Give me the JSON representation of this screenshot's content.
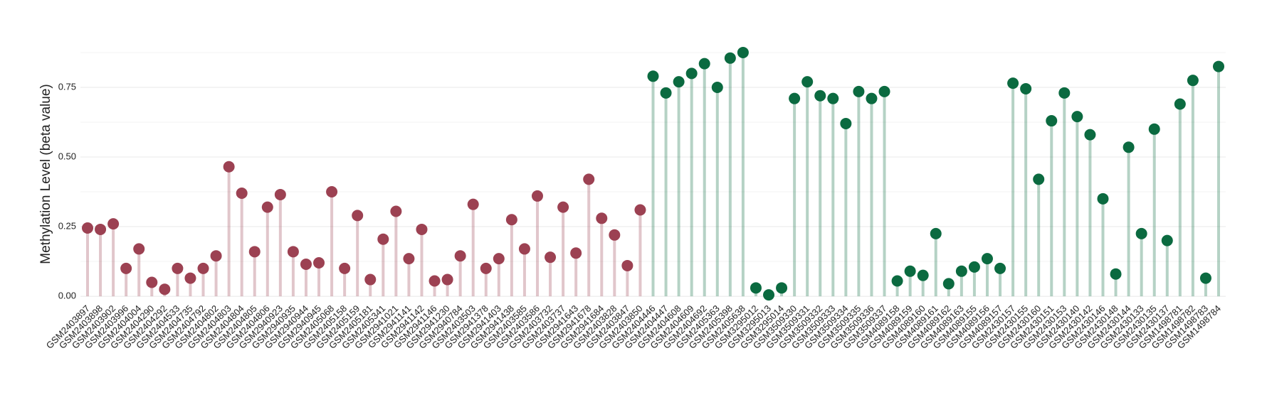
{
  "chart_data": {
    "type": "lollipop",
    "y_axis_label": "Methylation Level (beta value)",
    "categories": [
      "GSM2403897",
      "GSM2403898",
      "GSM2403902",
      "GSM2403996",
      "GSM2404004",
      "GSM2404290",
      "GSM2404292",
      "GSM2404533",
      "GSM2404735",
      "GSM2404792",
      "GSM2404802",
      "GSM2404803",
      "GSM2404804",
      "GSM2404805",
      "GSM2404806",
      "GSM2940923",
      "GSM2940935",
      "GSM2940944",
      "GSM2940945",
      "GSM2405068",
      "GSM2405158",
      "GSM2405159",
      "GSM2405181",
      "GSM2405341",
      "GSM2941021",
      "GSM2941141",
      "GSM2941142",
      "GSM2941146",
      "GSM2941230",
      "GSM2940784",
      "GSM2403503",
      "GSM2941378",
      "GSM2941403",
      "GSM2941438",
      "GSM2403585",
      "GSM2403586",
      "GSM2403732",
      "GSM2403737",
      "GSM2941643",
      "GSM2941678",
      "GSM2941684",
      "GSM2403828",
      "GSM2403847",
      "GSM2403850",
      "GSM2404446",
      "GSM2404447",
      "GSM2404608",
      "GSM2404609",
      "GSM2404692",
      "GSM2405363",
      "GSM2405398",
      "GSM2405638",
      "GSM3295012",
      "GSM3295013",
      "GSM3295014",
      "GSM3509330",
      "GSM3509331",
      "GSM3509332",
      "GSM3509333",
      "GSM3509334",
      "GSM3509335",
      "GSM3509336",
      "GSM3509337",
      "GSM4089158",
      "GSM4089159",
      "GSM4089160",
      "GSM4089161",
      "GSM4089162",
      "GSM4089163",
      "GSM4089155",
      "GSM4089156",
      "GSM4089157",
      "GSM2430157",
      "GSM2430155",
      "GSM2430160",
      "GSM2430151",
      "GSM2430153",
      "GSM2430140",
      "GSM2430142",
      "GSM2430146",
      "GSM2430148",
      "GSM2430144",
      "GSM2430133",
      "GSM2430135",
      "GSM2430137",
      "GSM1498781",
      "GSM1498782",
      "GSM1498783",
      "GSM1498784"
    ],
    "values": [
      0.245,
      0.24,
      0.26,
      0.1,
      0.17,
      0.05,
      0.025,
      0.1,
      0.065,
      0.1,
      0.145,
      0.465,
      0.37,
      0.16,
      0.32,
      0.365,
      0.16,
      0.115,
      0.12,
      0.375,
      0.1,
      0.29,
      0.06,
      0.205,
      0.305,
      0.135,
      0.24,
      0.055,
      0.06,
      0.145,
      0.33,
      0.1,
      0.135,
      0.275,
      0.17,
      0.36,
      0.14,
      0.32,
      0.155,
      0.42,
      0.28,
      0.22,
      0.11,
      0.31,
      0.79,
      0.73,
      0.77,
      0.8,
      0.835,
      0.75,
      0.855,
      0.875,
      0.03,
      0.005,
      0.03,
      0.71,
      0.77,
      0.72,
      0.71,
      0.62,
      0.735,
      0.71,
      0.735,
      0.055,
      0.09,
      0.075,
      0.225,
      0.045,
      0.09,
      0.105,
      0.135,
      0.1,
      0.765,
      0.745,
      0.42,
      0.63,
      0.73,
      0.645,
      0.58,
      0.35,
      0.08,
      0.535,
      0.225,
      0.6,
      0.2,
      0.69,
      0.775,
      0.065,
      0.825
    ],
    "colors": [
      "#9c4152",
      "#9c4152",
      "#9c4152",
      "#9c4152",
      "#9c4152",
      "#9c4152",
      "#9c4152",
      "#9c4152",
      "#9c4152",
      "#9c4152",
      "#9c4152",
      "#9c4152",
      "#9c4152",
      "#9c4152",
      "#9c4152",
      "#9c4152",
      "#9c4152",
      "#9c4152",
      "#9c4152",
      "#9c4152",
      "#9c4152",
      "#9c4152",
      "#9c4152",
      "#9c4152",
      "#9c4152",
      "#9c4152",
      "#9c4152",
      "#9c4152",
      "#9c4152",
      "#9c4152",
      "#9c4152",
      "#9c4152",
      "#9c4152",
      "#9c4152",
      "#9c4152",
      "#9c4152",
      "#9c4152",
      "#9c4152",
      "#9c4152",
      "#9c4152",
      "#9c4152",
      "#9c4152",
      "#9c4152",
      "#9c4152",
      "#0b6a40",
      "#0b6a40",
      "#0b6a40",
      "#0b6a40",
      "#0b6a40",
      "#0b6a40",
      "#0b6a40",
      "#0b6a40",
      "#0b6a40",
      "#0b6a40",
      "#0b6a40",
      "#0b6a40",
      "#0b6a40",
      "#0b6a40",
      "#0b6a40",
      "#0b6a40",
      "#0b6a40",
      "#0b6a40",
      "#0b6a40",
      "#0b6a40",
      "#0b6a40",
      "#0b6a40",
      "#0b6a40",
      "#0b6a40",
      "#0b6a40",
      "#0b6a40",
      "#0b6a40",
      "#0b6a40",
      "#0b6a40",
      "#0b6a40",
      "#0b6a40",
      "#0b6a40",
      "#0b6a40",
      "#0b6a40",
      "#0b6a40",
      "#0b6a40",
      "#0b6a40",
      "#0b6a40",
      "#0b6a40",
      "#0b6a40",
      "#0b6a40",
      "#0b6a40",
      "#0b6a40",
      "#0b6a40",
      "#0b6a40"
    ],
    "ylim": [
      -0.01,
      0.88
    ],
    "yticks": [
      {
        "value": 0,
        "label": "0.00"
      },
      {
        "value": 0.25,
        "label": "0.25"
      },
      {
        "value": 0.5,
        "label": "0.50"
      },
      {
        "value": 0.75,
        "label": "0.75"
      }
    ],
    "minor_yticks": [
      0.125,
      0.375,
      0.625,
      0.875
    ],
    "grid": true
  }
}
